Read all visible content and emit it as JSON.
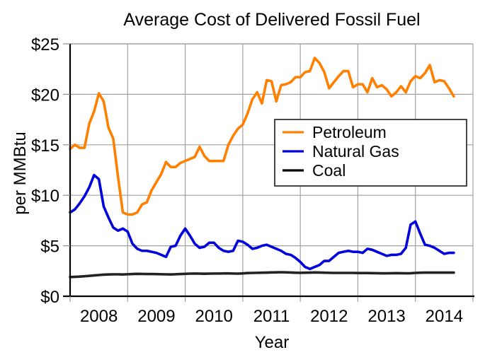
{
  "chart_data": {
    "type": "line",
    "title": "Average Cost of Delivered Fossil Fuel",
    "xlabel": "Year",
    "ylabel": "per MMBtu",
    "x_tick_labels": [
      "2008",
      "2009",
      "2010",
      "2011",
      "2012",
      "2013",
      "2014"
    ],
    "y_tick_labels": [
      "$0",
      "$5",
      "$10",
      "$15",
      "$20",
      "$25"
    ],
    "y_ticks": [
      0,
      5,
      10,
      15,
      20,
      25
    ],
    "ylim": [
      0,
      25
    ],
    "xlim": [
      2008.0,
      2015.0
    ],
    "x_start": 2008.0,
    "x_step_months": 1,
    "grid": true,
    "legend_position": "center-right",
    "series": [
      {
        "name": "Petroleum",
        "color": "#ff8000",
        "values": [
          14.6,
          15.0,
          14.7,
          14.7,
          17.1,
          18.3,
          20.1,
          19.3,
          16.7,
          15.6,
          11.8,
          8.3,
          8.1,
          8.1,
          8.3,
          9.1,
          9.3,
          10.5,
          11.3,
          12.1,
          13.3,
          12.8,
          12.8,
          13.2,
          13.4,
          13.6,
          13.8,
          14.8,
          13.9,
          13.4,
          13.4,
          13.4,
          13.4,
          15.0,
          15.9,
          16.6,
          17.0,
          18.1,
          19.5,
          20.2,
          19.1,
          21.4,
          21.3,
          19.3,
          20.9,
          21.0,
          21.2,
          21.7,
          21.7,
          22.2,
          22.3,
          23.6,
          23.1,
          22.2,
          20.6,
          21.2,
          21.8,
          22.3,
          22.3,
          20.7,
          21.0,
          21.0,
          20.2,
          21.6,
          20.7,
          20.9,
          20.5,
          19.8,
          20.2,
          20.8,
          20.2,
          21.3,
          21.8,
          21.6,
          22.1,
          22.9,
          21.2,
          21.4,
          21.3,
          20.6,
          19.8
        ]
      },
      {
        "name": "Natural Gas",
        "color": "#0000dd",
        "values": [
          8.3,
          8.6,
          9.2,
          9.9,
          10.8,
          12.0,
          11.6,
          8.9,
          7.8,
          6.8,
          6.5,
          6.7,
          6.4,
          5.2,
          4.7,
          4.5,
          4.5,
          4.4,
          4.3,
          4.1,
          3.9,
          4.9,
          5.0,
          6.0,
          6.7,
          6.0,
          5.2,
          4.8,
          4.9,
          5.3,
          5.3,
          4.8,
          4.5,
          4.4,
          4.5,
          5.5,
          5.4,
          5.1,
          4.7,
          4.8,
          5.0,
          5.1,
          4.9,
          4.7,
          4.5,
          4.2,
          4.1,
          3.8,
          3.4,
          2.9,
          2.7,
          2.9,
          3.1,
          3.5,
          3.5,
          3.9,
          4.3,
          4.4,
          4.5,
          4.4,
          4.4,
          4.3,
          4.7,
          4.6,
          4.4,
          4.2,
          4.0,
          4.1,
          4.1,
          4.2,
          4.8,
          7.1,
          7.4,
          6.2,
          5.1,
          5.0,
          4.8,
          4.5,
          4.2,
          4.3,
          4.3
        ]
      },
      {
        "name": "Coal",
        "color": "#222222",
        "values": [
          1.9,
          1.92,
          1.95,
          1.98,
          2.02,
          2.06,
          2.1,
          2.14,
          2.16,
          2.17,
          2.17,
          2.16,
          2.18,
          2.2,
          2.22,
          2.21,
          2.2,
          2.2,
          2.19,
          2.18,
          2.17,
          2.16,
          2.18,
          2.2,
          2.22,
          2.24,
          2.25,
          2.24,
          2.23,
          2.24,
          2.25,
          2.25,
          2.26,
          2.26,
          2.25,
          2.24,
          2.26,
          2.3,
          2.31,
          2.32,
          2.33,
          2.34,
          2.36,
          2.37,
          2.38,
          2.37,
          2.35,
          2.33,
          2.32,
          2.33,
          2.34,
          2.36,
          2.35,
          2.33,
          2.32,
          2.31,
          2.31,
          2.31,
          2.31,
          2.31,
          2.3,
          2.3,
          2.3,
          2.29,
          2.28,
          2.27,
          2.27,
          2.28,
          2.29,
          2.28,
          2.27,
          2.28,
          2.31,
          2.33,
          2.34,
          2.34,
          2.34,
          2.34,
          2.34,
          2.34,
          2.34
        ]
      }
    ]
  }
}
